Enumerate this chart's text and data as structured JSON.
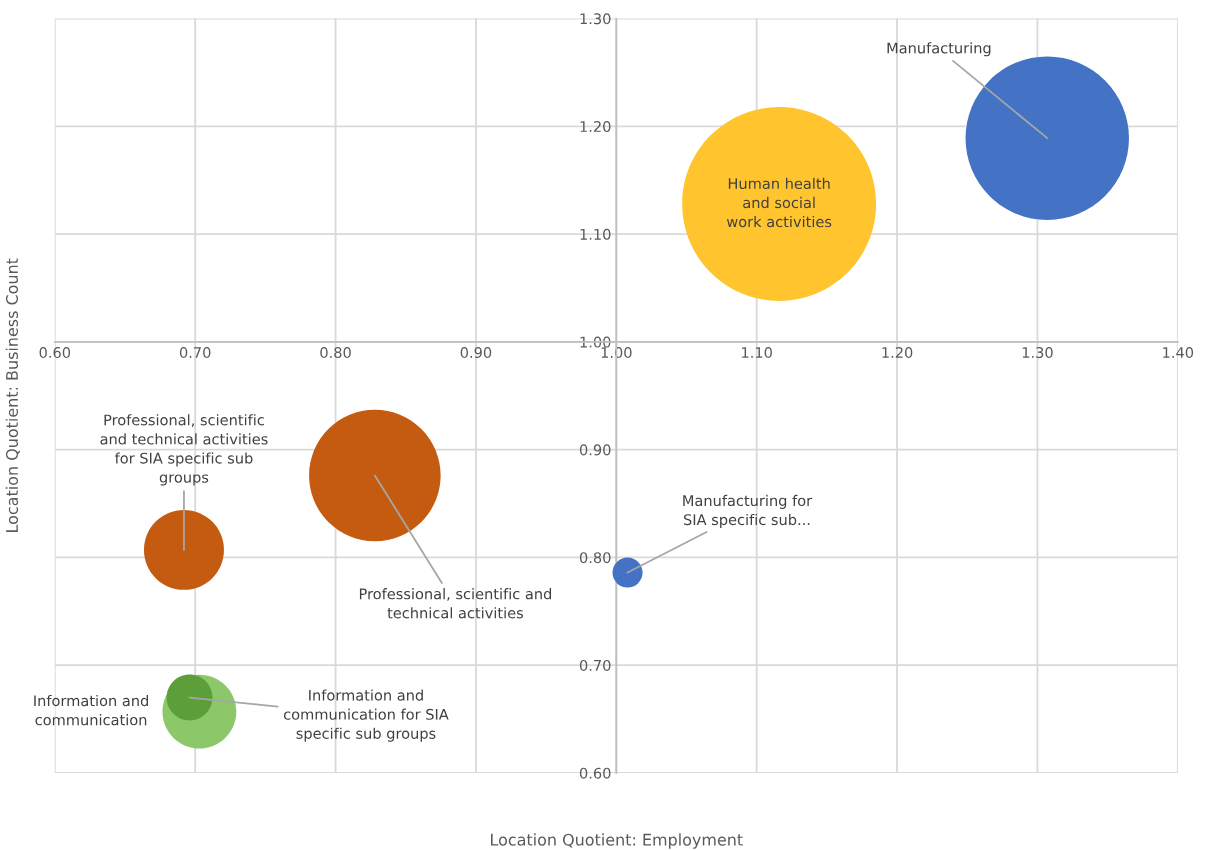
{
  "chart_data": {
    "type": "bubble",
    "xlabel": "Location Quotient: Employment",
    "ylabel": "Location Quotient: Business Count",
    "xlim": [
      0.6,
      1.4
    ],
    "ylim": [
      0.6,
      1.3
    ],
    "xticks": [
      {
        "value": 0.6,
        "label": "0.60"
      },
      {
        "value": 0.7,
        "label": "0.70"
      },
      {
        "value": 0.8,
        "label": "0.80"
      },
      {
        "value": 0.9,
        "label": "0.90"
      },
      {
        "value": 1.0,
        "label": "1.00"
      },
      {
        "value": 1.1,
        "label": "1.10"
      },
      {
        "value": 1.2,
        "label": "1.20"
      },
      {
        "value": 1.3,
        "label": "1.30"
      },
      {
        "value": 1.4,
        "label": "1.40"
      }
    ],
    "yticks": [
      {
        "value": 0.6,
        "label": "0.60"
      },
      {
        "value": 0.7,
        "label": "0.70"
      },
      {
        "value": 0.8,
        "label": "0.80"
      },
      {
        "value": 0.9,
        "label": "0.90"
      },
      {
        "value": 1.0,
        "label": "1.00"
      },
      {
        "value": 1.1,
        "label": "1.10"
      },
      {
        "value": 1.2,
        "label": "1.20"
      },
      {
        "value": 1.3,
        "label": "1.30"
      }
    ],
    "grid": true,
    "legend": false,
    "series": [
      {
        "name": "Manufacturing",
        "color": "#4472c4",
        "x": [
          1.307
        ],
        "values": [
          1.189
        ],
        "sizes": [
          0.71
        ]
      },
      {
        "name": "Human health\nand social\nwork activities",
        "color": "#ffc42e",
        "x": [
          1.116
        ],
        "values": [
          1.128
        ],
        "sizes": [
          1
        ]
      },
      {
        "name": "Professional, scientific and\ntechnical activities",
        "color": "#c55a11",
        "x": [
          0.828
        ],
        "values": [
          0.876
        ],
        "sizes": [
          0.46
        ]
      },
      {
        "name": "Professional, scientific\nand technical activities\nfor SIA specific sub\ngroups",
        "color": "#c55a11",
        "x": [
          0.692
        ],
        "values": [
          0.807
        ],
        "sizes": [
          0.17
        ]
      },
      {
        "name": "Manufacturing for\nSIA specific sub...",
        "color": "#4472c4",
        "x": [
          1.008
        ],
        "values": [
          0.786
        ],
        "sizes": [
          0.024
        ]
      },
      {
        "name": "Information and\ncommunication",
        "color": "#8cc86a",
        "x": [
          0.703
        ],
        "values": [
          0.657
        ],
        "sizes": [
          0.145
        ]
      },
      {
        "name": "Information and\ncommunication for SIA\nspecific sub groups",
        "color": "#5c9f3a",
        "x": [
          0.696
        ],
        "values": [
          0.67
        ],
        "sizes": [
          0.056
        ]
      }
    ]
  }
}
